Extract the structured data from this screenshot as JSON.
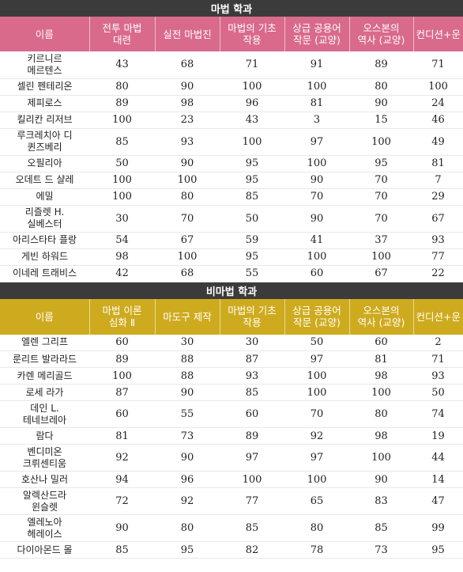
{
  "magic": {
    "title": "마법 학과",
    "header_color": "#d96a8c",
    "columns": [
      "이름",
      "전투 마법\n대련",
      "실전 마법진",
      "마법의 기초\n작용",
      "상급 공용어\n작문 (교양)",
      "오스본의\n역사 (교양)",
      "컨디션+운"
    ],
    "rows": [
      {
        "name": "키르니르\n메르텐스",
        "values": [
          "43",
          "68",
          "71",
          "91",
          "89",
          "71"
        ]
      },
      {
        "name": "셀린 펜테리온",
        "values": [
          "80",
          "90",
          "100",
          "100",
          "80",
          "100"
        ]
      },
      {
        "name": "제피로스",
        "values": [
          "89",
          "98",
          "96",
          "81",
          "90",
          "24"
        ]
      },
      {
        "name": "킬리칸 리저브",
        "values": [
          "100",
          "23",
          "43",
          "3",
          "15",
          "46"
        ]
      },
      {
        "name": "루크레치아 디\n퀸즈베리",
        "values": [
          "85",
          "93",
          "100",
          "97",
          "100",
          "49"
        ]
      },
      {
        "name": "오필리아",
        "values": [
          "50",
          "90",
          "95",
          "100",
          "95",
          "81"
        ]
      },
      {
        "name": "오데트 드 샬레",
        "values": [
          "100",
          "100",
          "95",
          "90",
          "70",
          "7"
        ]
      },
      {
        "name": "에밀",
        "values": [
          "100",
          "80",
          "85",
          "70",
          "70",
          "29"
        ]
      },
      {
        "name": "리즐렛 H.\n실베스터",
        "values": [
          "30",
          "70",
          "50",
          "90",
          "70",
          "67"
        ]
      },
      {
        "name": "아리스타타 플랑",
        "values": [
          "54",
          "67",
          "59",
          "41",
          "37",
          "93"
        ]
      },
      {
        "name": "게빈 하워드",
        "values": [
          "98",
          "100",
          "95",
          "100",
          "100",
          "77"
        ]
      },
      {
        "name": "이네레 트래비스",
        "values": [
          "42",
          "68",
          "55",
          "60",
          "67",
          "22"
        ]
      }
    ]
  },
  "nonmagic": {
    "title": "비마법 학과",
    "header_color": "#ceab1e",
    "columns": [
      "이름",
      "마법 이론\n심화 Ⅱ",
      "마도구 제작",
      "마법의 기초\n작용",
      "상급 공용어\n작문 (교양)",
      "오스본의\n역사 (교양)",
      "컨디션+운"
    ],
    "rows": [
      {
        "name": "엘렌 그리프",
        "values": [
          "60",
          "30",
          "30",
          "50",
          "60",
          "2"
        ]
      },
      {
        "name": "룬리트 발라라드",
        "values": [
          "89",
          "88",
          "87",
          "97",
          "81",
          "71"
        ]
      },
      {
        "name": "카렌 메리골드",
        "values": [
          "100",
          "88",
          "93",
          "100",
          "98",
          "93"
        ]
      },
      {
        "name": "로세 라가",
        "values": [
          "87",
          "90",
          "85",
          "100",
          "100",
          "50"
        ]
      },
      {
        "name": "데인 L.\n테네브레아",
        "values": [
          "60",
          "55",
          "60",
          "70",
          "80",
          "74"
        ]
      },
      {
        "name": "람다",
        "values": [
          "81",
          "73",
          "89",
          "92",
          "98",
          "19"
        ]
      },
      {
        "name": "벤디미온\n크뤼센티움",
        "values": [
          "92",
          "90",
          "97",
          "97",
          "100",
          "44"
        ]
      },
      {
        "name": "호산나 밀러",
        "values": [
          "94",
          "96",
          "100",
          "100",
          "90",
          "14"
        ]
      },
      {
        "name": "알렉산드라\n윈슬렛",
        "values": [
          "72",
          "92",
          "77",
          "65",
          "83",
          "47"
        ]
      },
      {
        "name": "엘레노아\n헤레이스",
        "values": [
          "90",
          "80",
          "85",
          "80",
          "85",
          "99"
        ]
      },
      {
        "name": "다이아몬드 몰",
        "values": [
          "85",
          "95",
          "82",
          "78",
          "73",
          "95"
        ]
      }
    ]
  }
}
